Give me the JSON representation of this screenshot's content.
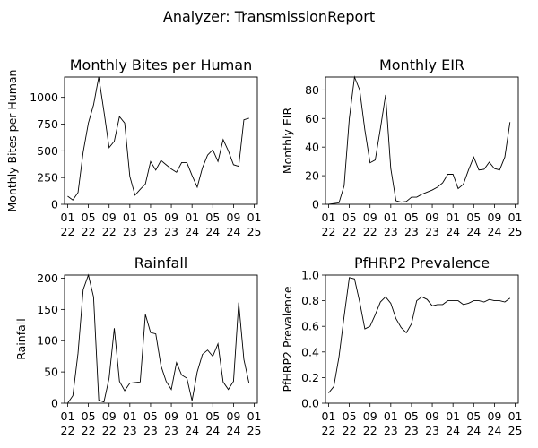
{
  "figure": {
    "title": "Analyzer: TransmissionReport"
  },
  "chart_data": [
    {
      "type": "line",
      "title": "Monthly Bites per Human",
      "ylabel": "Monthly Bites per Human",
      "xlabel": "",
      "ylim": [
        0,
        1190
      ],
      "yticks": [
        0,
        250,
        500,
        750,
        1000
      ],
      "xlim": [
        -0.6,
        36.6
      ],
      "xticks": [
        {
          "pos": 0,
          "label": [
            "01",
            "22"
          ]
        },
        {
          "pos": 4,
          "label": [
            "05",
            "22"
          ]
        },
        {
          "pos": 8,
          "label": [
            "09",
            "22"
          ]
        },
        {
          "pos": 12,
          "label": [
            "01",
            "23"
          ]
        },
        {
          "pos": 16,
          "label": [
            "05",
            "23"
          ]
        },
        {
          "pos": 20,
          "label": [
            "09",
            "23"
          ]
        },
        {
          "pos": 24,
          "label": [
            "01",
            "24"
          ]
        },
        {
          "pos": 28,
          "label": [
            "05",
            "24"
          ]
        },
        {
          "pos": 32,
          "label": [
            "09",
            "24"
          ]
        },
        {
          "pos": 36,
          "label": [
            "01",
            "25"
          ]
        }
      ],
      "series": [
        {
          "values": [
            75,
            40,
            110,
            490,
            760,
            930,
            1190,
            870,
            530,
            590,
            820,
            760,
            260,
            85,
            140,
            190,
            400,
            320,
            410,
            370,
            330,
            300,
            390,
            390,
            270,
            160,
            340,
            460,
            510,
            400,
            605,
            500,
            370,
            355,
            790,
            805
          ]
        }
      ]
    },
    {
      "type": "line",
      "title": "Monthly EIR",
      "ylabel": "Monthly EIR",
      "xlabel": "",
      "ylim": [
        0,
        89
      ],
      "yticks": [
        0,
        20,
        40,
        60,
        80
      ],
      "xlim": [
        -0.6,
        36.6
      ],
      "xticks": [
        {
          "pos": 0,
          "label": [
            "01",
            "22"
          ]
        },
        {
          "pos": 4,
          "label": [
            "05",
            "22"
          ]
        },
        {
          "pos": 8,
          "label": [
            "09",
            "22"
          ]
        },
        {
          "pos": 12,
          "label": [
            "01",
            "23"
          ]
        },
        {
          "pos": 16,
          "label": [
            "05",
            "23"
          ]
        },
        {
          "pos": 20,
          "label": [
            "09",
            "23"
          ]
        },
        {
          "pos": 24,
          "label": [
            "01",
            "24"
          ]
        },
        {
          "pos": 28,
          "label": [
            "05",
            "24"
          ]
        },
        {
          "pos": 32,
          "label": [
            "09",
            "24"
          ]
        },
        {
          "pos": 36,
          "label": [
            "01",
            "25"
          ]
        }
      ],
      "series": [
        {
          "values": [
            0,
            0.5,
            1,
            13,
            60,
            89,
            80,
            52,
            29,
            31,
            53,
            76.5,
            25,
            2.5,
            1.5,
            2,
            5,
            5,
            7,
            8.5,
            10,
            12,
            15,
            21,
            21,
            11,
            14,
            24,
            33,
            24,
            24.5,
            29.5,
            25,
            24,
            33,
            57.5
          ]
        }
      ]
    },
    {
      "type": "line",
      "title": "Rainfall",
      "ylabel": "Rainfall",
      "xlabel": "",
      "ylim": [
        0,
        205
      ],
      "yticks": [
        0,
        50,
        100,
        150,
        200
      ],
      "xlim": [
        -0.6,
        36.6
      ],
      "xticks": [
        {
          "pos": 0,
          "label": [
            "01",
            "22"
          ]
        },
        {
          "pos": 4,
          "label": [
            "05",
            "22"
          ]
        },
        {
          "pos": 8,
          "label": [
            "09",
            "22"
          ]
        },
        {
          "pos": 12,
          "label": [
            "01",
            "23"
          ]
        },
        {
          "pos": 16,
          "label": [
            "05",
            "23"
          ]
        },
        {
          "pos": 20,
          "label": [
            "09",
            "23"
          ]
        },
        {
          "pos": 24,
          "label": [
            "01",
            "24"
          ]
        },
        {
          "pos": 28,
          "label": [
            "05",
            "24"
          ]
        },
        {
          "pos": 32,
          "label": [
            "09",
            "24"
          ]
        },
        {
          "pos": 36,
          "label": [
            "01",
            "25"
          ]
        }
      ],
      "series": [
        {
          "values": [
            0,
            12,
            80,
            182,
            205,
            170,
            5,
            2,
            40,
            120,
            35,
            20,
            32,
            33,
            34,
            142,
            113,
            111,
            60,
            35,
            22,
            65,
            45,
            40,
            4,
            50,
            78,
            85,
            75,
            95,
            34,
            22,
            35,
            161,
            70,
            32
          ]
        }
      ]
    },
    {
      "type": "line",
      "title": "PfHRP2 Prevalence",
      "ylabel": "PfHRP2 Prevalence",
      "xlabel": "",
      "ylim": [
        0,
        1.0
      ],
      "yticks": [
        0.0,
        0.2,
        0.4,
        0.6,
        0.8,
        1.0
      ],
      "xlim": [
        -0.6,
        36.6
      ],
      "xticks": [
        {
          "pos": 0,
          "label": [
            "01",
            "22"
          ]
        },
        {
          "pos": 4,
          "label": [
            "05",
            "22"
          ]
        },
        {
          "pos": 8,
          "label": [
            "09",
            "22"
          ]
        },
        {
          "pos": 12,
          "label": [
            "01",
            "23"
          ]
        },
        {
          "pos": 16,
          "label": [
            "05",
            "23"
          ]
        },
        {
          "pos": 20,
          "label": [
            "09",
            "23"
          ]
        },
        {
          "pos": 24,
          "label": [
            "01",
            "24"
          ]
        },
        {
          "pos": 28,
          "label": [
            "05",
            "24"
          ]
        },
        {
          "pos": 32,
          "label": [
            "09",
            "24"
          ]
        },
        {
          "pos": 36,
          "label": [
            "01",
            "25"
          ]
        }
      ],
      "series": [
        {
          "values": [
            0.08,
            0.13,
            0.36,
            0.68,
            0.98,
            0.97,
            0.79,
            0.58,
            0.6,
            0.69,
            0.79,
            0.83,
            0.78,
            0.66,
            0.59,
            0.55,
            0.62,
            0.8,
            0.83,
            0.81,
            0.76,
            0.77,
            0.77,
            0.8,
            0.8,
            0.8,
            0.77,
            0.78,
            0.8,
            0.8,
            0.79,
            0.81,
            0.8,
            0.8,
            0.79,
            0.82
          ]
        }
      ]
    }
  ]
}
